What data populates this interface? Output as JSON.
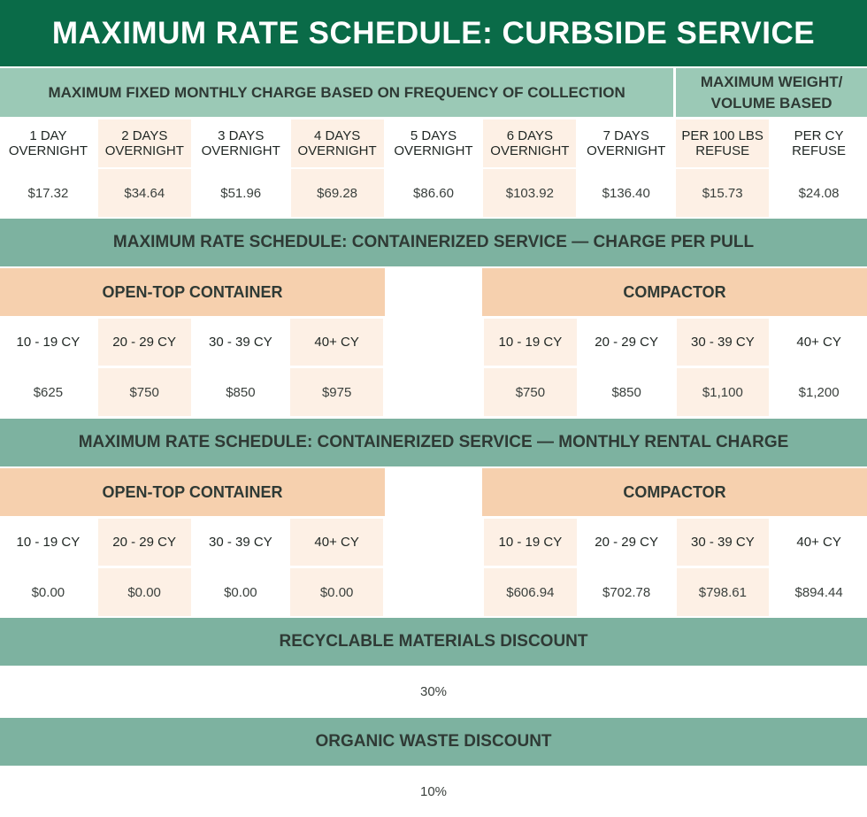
{
  "title": "MAXIMUM RATE SCHEDULE: CURBSIDE SERVICE",
  "curbside": {
    "fixed_header": "MAXIMUM FIXED MONTHLY CHARGE BASED ON FREQUENCY OF COLLECTION",
    "weight_header": "MAXIMUM WEIGHT/ VOLUME BASED",
    "columns": [
      {
        "label": "1 DAY OVERNIGHT",
        "value": "$17.32"
      },
      {
        "label": "2 DAYS OVERNIGHT",
        "value": "$34.64"
      },
      {
        "label": "3 DAYS OVERNIGHT",
        "value": "$51.96"
      },
      {
        "label": "4 DAYS OVERNIGHT",
        "value": "$69.28"
      },
      {
        "label": "5 DAYS OVERNIGHT",
        "value": "$86.60"
      },
      {
        "label": "6 DAYS OVERNIGHT",
        "value": "$103.92"
      },
      {
        "label": "7 DAYS OVERNIGHT",
        "value": "$136.40"
      },
      {
        "label": "PER 100 LBS REFUSE",
        "value": "$15.73"
      },
      {
        "label": "PER CY REFUSE",
        "value": "$24.08"
      }
    ]
  },
  "containerized": [
    {
      "title": "MAXIMUM RATE SCHEDULE: CONTAINERIZED SERVICE — CHARGE PER PULL",
      "groups": [
        {
          "name": "OPEN-TOP CONTAINER",
          "columns": [
            {
              "label": "10 - 19 CY",
              "value": "$625"
            },
            {
              "label": "20 - 29 CY",
              "value": "$750"
            },
            {
              "label": "30 - 39 CY",
              "value": "$850"
            },
            {
              "label": "40+ CY",
              "value": "$975"
            }
          ]
        },
        {
          "name": "COMPACTOR",
          "columns": [
            {
              "label": "10 - 19 CY",
              "value": "$750"
            },
            {
              "label": "20 - 29 CY",
              "value": "$850"
            },
            {
              "label": "30 - 39 CY",
              "value": "$1,100"
            },
            {
              "label": "40+ CY",
              "value": "$1,200"
            }
          ]
        }
      ]
    },
    {
      "title": "MAXIMUM RATE SCHEDULE: CONTAINERIZED SERVICE — MONTHLY RENTAL CHARGE",
      "groups": [
        {
          "name": "OPEN-TOP CONTAINER",
          "columns": [
            {
              "label": "10 - 19 CY",
              "value": "$0.00"
            },
            {
              "label": "20 - 29 CY",
              "value": "$0.00"
            },
            {
              "label": "30 - 39 CY",
              "value": "$0.00"
            },
            {
              "label": "40+ CY",
              "value": "$0.00"
            }
          ]
        },
        {
          "name": "COMPACTOR",
          "columns": [
            {
              "label": "10 - 19 CY",
              "value": "$606.94"
            },
            {
              "label": "20 - 29 CY",
              "value": "$702.78"
            },
            {
              "label": "30 - 39 CY",
              "value": "$798.61"
            },
            {
              "label": "40+ CY",
              "value": "$894.44"
            }
          ]
        }
      ]
    }
  ],
  "discounts": [
    {
      "title": "RECYCLABLE MATERIALS DISCOUNT",
      "value": "30%"
    },
    {
      "title": "ORGANIC WASTE DISCOUNT",
      "value": "10%"
    }
  ]
}
